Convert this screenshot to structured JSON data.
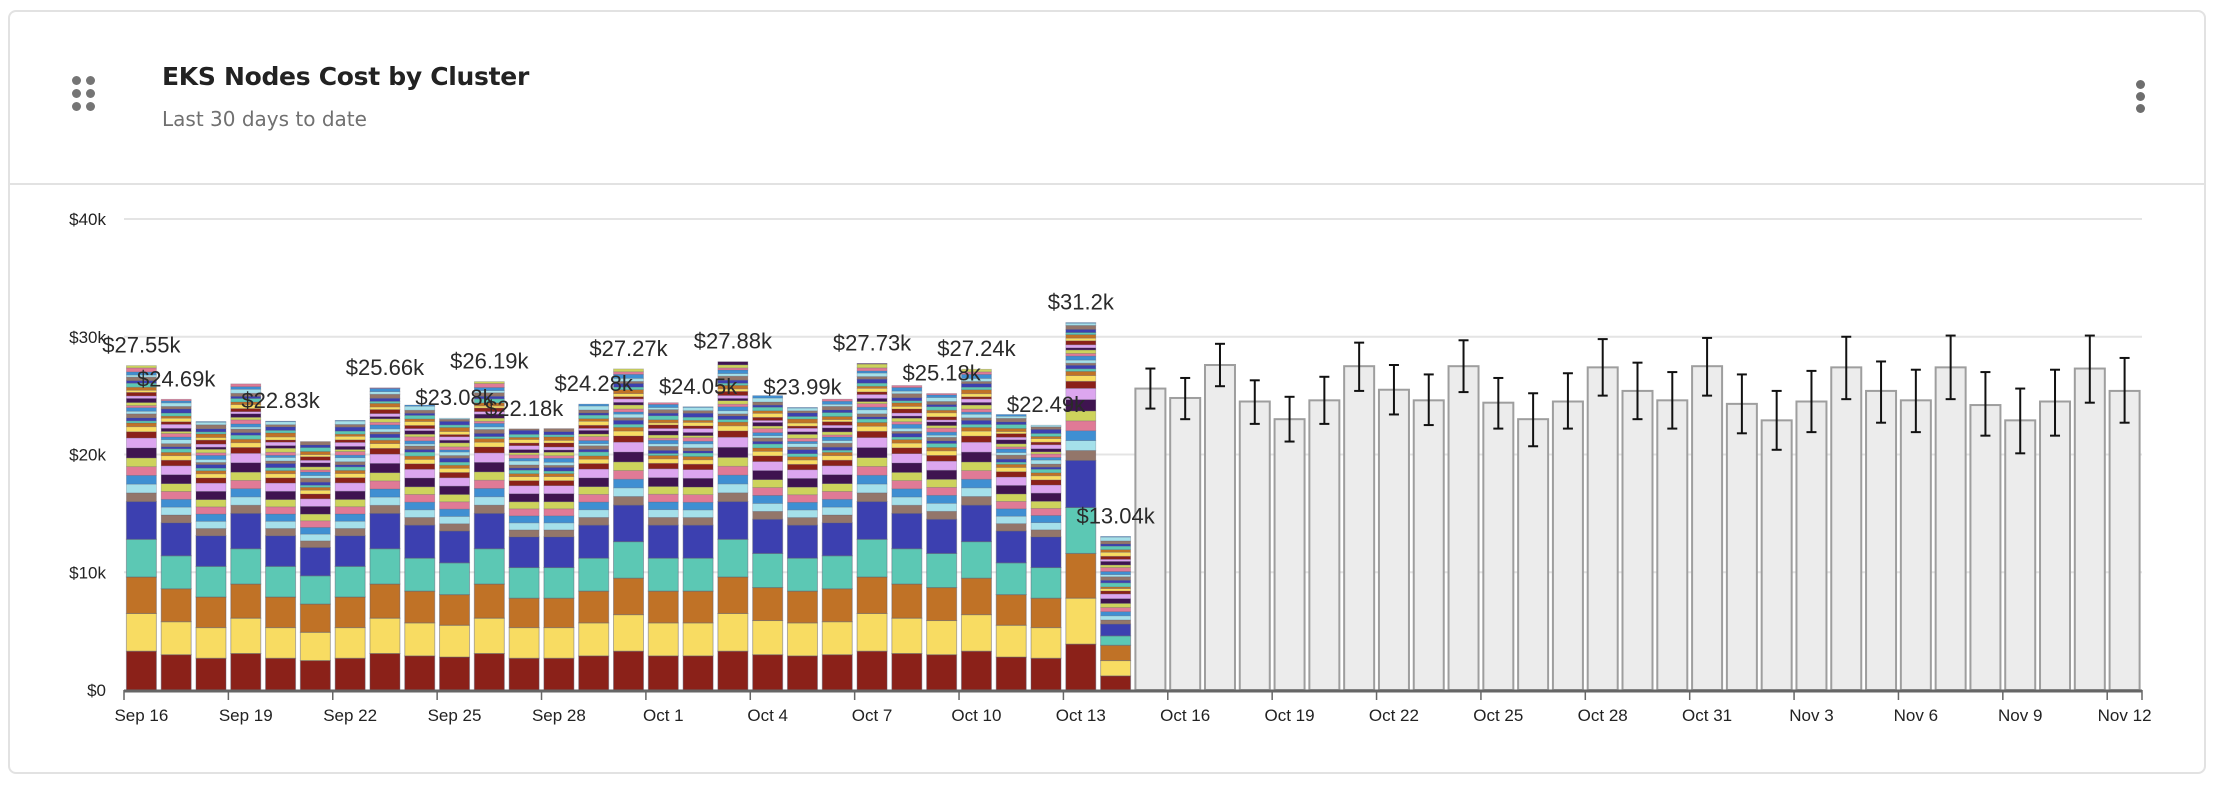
{
  "card": {
    "title": "EKS Nodes Cost by Cluster",
    "subtitle": "Last 30 days to date",
    "drag_icon": "drag-handle-icon",
    "menu_icon": "more-vertical-icon"
  },
  "chart_data": {
    "type": "bar",
    "stacked": true,
    "title": "",
    "xlabel": "",
    "ylabel": "",
    "ylim": [
      0,
      40000
    ],
    "yticks": [
      "$0",
      "$10k",
      "$20k",
      "$30k",
      "$40k"
    ],
    "ytick_values": [
      0,
      10000,
      20000,
      30000,
      40000
    ],
    "grid": true,
    "categories": [
      "Sep 16",
      "Sep 17",
      "Sep 18",
      "Sep 19",
      "Sep 20",
      "Sep 21",
      "Sep 22",
      "Sep 23",
      "Sep 24",
      "Sep 25",
      "Sep 26",
      "Sep 27",
      "Sep 28",
      "Sep 29",
      "Sep 30",
      "Oct 1",
      "Oct 2",
      "Oct 3",
      "Oct 4",
      "Oct 5",
      "Oct 6",
      "Oct 7",
      "Oct 8",
      "Oct 9",
      "Oct 10",
      "Oct 11",
      "Oct 12",
      "Oct 13",
      "Oct 14",
      "Oct 15",
      "Oct 16",
      "Oct 17",
      "Oct 18",
      "Oct 19",
      "Oct 20",
      "Oct 21",
      "Oct 22",
      "Oct 23",
      "Oct 24",
      "Oct 25",
      "Oct 26",
      "Oct 27",
      "Oct 28",
      "Oct 29",
      "Oct 30",
      "Oct 31",
      "Nov 1",
      "Nov 2",
      "Nov 3",
      "Nov 4",
      "Nov 5",
      "Nov 6",
      "Nov 7",
      "Nov 8",
      "Nov 9",
      "Nov 10",
      "Nov 11",
      "Nov 12"
    ],
    "xtick_labels": [
      "Sep 16",
      "Sep 19",
      "Sep 22",
      "Sep 25",
      "Sep 28",
      "Oct 1",
      "Oct 4",
      "Oct 7",
      "Oct 10",
      "Oct 13",
      "Oct 16",
      "Oct 19",
      "Oct 22",
      "Oct 25",
      "Oct 28",
      "Oct 31",
      "Nov 3",
      "Nov 6",
      "Nov 9",
      "Nov 12"
    ],
    "actual": {
      "dates": [
        "Sep 16",
        "Sep 17",
        "Sep 18",
        "Sep 19",
        "Sep 20",
        "Sep 21",
        "Sep 22",
        "Sep 23",
        "Sep 24",
        "Sep 25",
        "Sep 26",
        "Sep 27",
        "Sep 28",
        "Sep 29",
        "Sep 30",
        "Oct 1",
        "Oct 2",
        "Oct 3",
        "Oct 4",
        "Oct 5",
        "Oct 6",
        "Oct 7",
        "Oct 8",
        "Oct 9",
        "Oct 10",
        "Oct 11",
        "Oct 12",
        "Oct 13",
        "Oct 14"
      ],
      "totals": [
        27550,
        24690,
        22800,
        26000,
        22830,
        21100,
        22900,
        25660,
        24200,
        23080,
        26190,
        22180,
        22200,
        24280,
        27270,
        24400,
        24050,
        27880,
        25000,
        23990,
        24700,
        27730,
        25860,
        25180,
        27240,
        23400,
        22490,
        31200,
        13040
      ],
      "series": [
        {
          "color": "#8b2119",
          "values": [
            3300,
            3000,
            2700,
            3100,
            2700,
            2500,
            2700,
            3100,
            2900,
            2800,
            3100,
            2700,
            2700,
            2900,
            3300,
            2900,
            2900,
            3300,
            3000,
            2900,
            3000,
            3300,
            3100,
            3000,
            3300,
            2800,
            2700,
            3900,
            1200
          ]
        },
        {
          "color": "#f8dc62",
          "values": [
            3200,
            2800,
            2600,
            3000,
            2600,
            2400,
            2600,
            3000,
            2800,
            2700,
            3000,
            2600,
            2600,
            2800,
            3100,
            2800,
            2800,
            3200,
            2900,
            2800,
            2800,
            3200,
            3000,
            2900,
            3100,
            2700,
            2600,
            3900,
            1300
          ]
        },
        {
          "color": "#c07226",
          "values": [
            3100,
            2800,
            2600,
            2900,
            2600,
            2400,
            2600,
            2900,
            2700,
            2600,
            2900,
            2500,
            2500,
            2700,
            3100,
            2700,
            2700,
            3100,
            2800,
            2700,
            2800,
            3100,
            2900,
            2800,
            3100,
            2600,
            2500,
            3800,
            1300
          ]
        },
        {
          "color": "#5cc8b4",
          "values": [
            3200,
            2800,
            2600,
            3000,
            2600,
            2400,
            2600,
            3000,
            2800,
            2700,
            3000,
            2600,
            2600,
            2800,
            3100,
            2800,
            2800,
            3200,
            2900,
            2800,
            2800,
            3200,
            3000,
            2900,
            3100,
            2700,
            2600,
            3900,
            800
          ]
        },
        {
          "color": "#3c40b0",
          "values": [
            3200,
            2800,
            2600,
            3000,
            2600,
            2400,
            2600,
            3000,
            2800,
            2700,
            3000,
            2600,
            2600,
            2800,
            3100,
            2800,
            2800,
            3200,
            2900,
            2800,
            2800,
            3200,
            3000,
            2900,
            3100,
            2700,
            2600,
            4000,
            1000
          ]
        }
      ],
      "other_colors": [
        "#93766a",
        "#a5e0ea",
        "#3f8fd2",
        "#e07a96",
        "#cdd35c",
        "#3f1450",
        "#dca6ef",
        "#8b2119",
        "#f8dc62",
        "#c07226",
        "#5cc8b4",
        "#3c40b0"
      ]
    },
    "data_labels": [
      {
        "date": "Sep 16",
        "text": "$27.55k"
      },
      {
        "date": "Sep 17",
        "text": "$24.69k"
      },
      {
        "date": "Sep 20",
        "text": "$22.83k"
      },
      {
        "date": "Sep 23",
        "text": "$25.66k"
      },
      {
        "date": "Sep 25",
        "text": "$23.08k"
      },
      {
        "date": "Sep 26",
        "text": "$26.19k"
      },
      {
        "date": "Sep 27",
        "text": "$22.18k"
      },
      {
        "date": "Sep 29",
        "text": "$24.28k"
      },
      {
        "date": "Sep 30",
        "text": "$27.27k"
      },
      {
        "date": "Oct 2",
        "text": "$24.05k"
      },
      {
        "date": "Oct 3",
        "text": "$27.88k"
      },
      {
        "date": "Oct 5",
        "text": "$23.99k"
      },
      {
        "date": "Oct 7",
        "text": "$27.73k"
      },
      {
        "date": "Oct 9",
        "text": "$25.18k"
      },
      {
        "date": "Oct 10",
        "text": "$27.24k"
      },
      {
        "date": "Oct 12",
        "text": "$22.49k"
      },
      {
        "date": "Oct 13",
        "text": "$31.2k"
      },
      {
        "date": "Oct 14",
        "text": "$13.04k"
      }
    ],
    "forecast": {
      "color": "#ececec",
      "border_color": "#9e9e9e",
      "dates": [
        "Oct 15",
        "Oct 16",
        "Oct 17",
        "Oct 18",
        "Oct 19",
        "Oct 20",
        "Oct 21",
        "Oct 22",
        "Oct 23",
        "Oct 24",
        "Oct 25",
        "Oct 26",
        "Oct 27",
        "Oct 28",
        "Oct 29",
        "Oct 30",
        "Oct 31",
        "Nov 1",
        "Nov 2",
        "Nov 3",
        "Nov 4",
        "Nov 5",
        "Nov 6",
        "Nov 7",
        "Nov 8",
        "Nov 9",
        "Nov 10",
        "Nov 11",
        "Nov 12"
      ],
      "values": [
        25600,
        24800,
        27600,
        24500,
        23000,
        24600,
        27500,
        25500,
        24600,
        27500,
        24400,
        23000,
        24500,
        27400,
        25400,
        24600,
        27500,
        24300,
        22900,
        24500,
        27400,
        25400,
        24600,
        27400,
        24200,
        22900,
        24500,
        27300,
        25400
      ],
      "lower": [
        23900,
        23000,
        25800,
        22600,
        21100,
        22600,
        25400,
        23400,
        22500,
        25300,
        22200,
        20700,
        22200,
        25000,
        23000,
        22200,
        25000,
        21800,
        20400,
        21900,
        24700,
        22700,
        21900,
        24700,
        21600,
        20100,
        21600,
        24400,
        22700
      ],
      "upper": [
        27300,
        26500,
        29400,
        26300,
        24900,
        26600,
        29500,
        27600,
        26800,
        29700,
        26500,
        25200,
        26900,
        29800,
        27800,
        27000,
        29900,
        26800,
        25400,
        27100,
        30000,
        27900,
        27200,
        30100,
        27000,
        25600,
        27200,
        30100,
        28200
      ]
    }
  }
}
